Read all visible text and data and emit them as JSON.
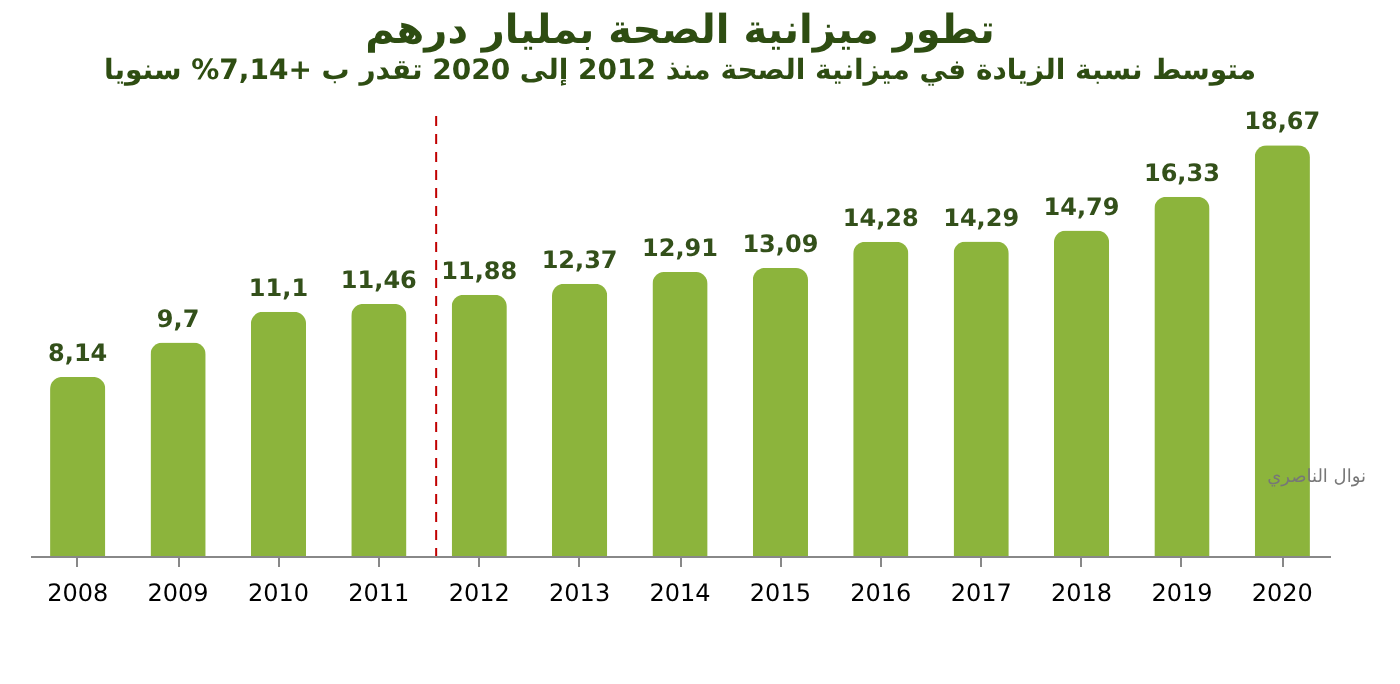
{
  "chart_data": {
    "type": "bar",
    "title": "تطور ميزانية الصحة بمليار درهم",
    "subtitle": "متوسط نسبة الزيادة في ميزانية الصحة منذ 2012 إلى 2020 تقدر ب +7,14% سنويا",
    "categories": [
      "2008",
      "2009",
      "2010",
      "2011",
      "2012",
      "2013",
      "2014",
      "2015",
      "2016",
      "2017",
      "2018",
      "2019",
      "2020"
    ],
    "values": [
      8.14,
      9.7,
      11.1,
      11.46,
      11.88,
      12.37,
      12.91,
      13.09,
      14.28,
      14.29,
      14.79,
      16.33,
      18.67
    ],
    "value_labels": [
      "8,14",
      "9,7",
      "11,1",
      "11,46",
      "11,88",
      "12,37",
      "12,91",
      "13,09",
      "14,28",
      "14,29",
      "14,79",
      "16,33",
      "18,67"
    ],
    "color": "#8cb43c",
    "ref_lines": [
      {
        "axis": "x",
        "value": "2012",
        "color": "#c00000",
        "line_style": "dashed"
      }
    ],
    "annotations": [
      "نوال الناصري"
    ]
  }
}
